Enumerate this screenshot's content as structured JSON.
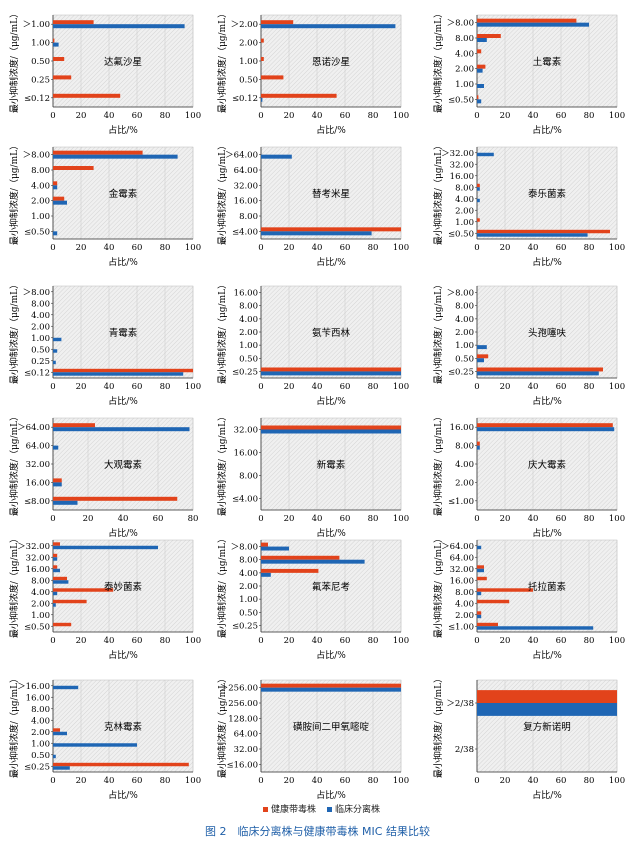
{
  "colors": {
    "healthy": "#e2431b",
    "clinical": "#1f66b4",
    "caption": "#1f5fa8",
    "plot_bg": "#e8e8e8"
  },
  "legend": {
    "healthy": "健康带毒株",
    "clinical": "临床分离株"
  },
  "caption": "图 2　临床分离株与健康带毒株 MIC 结果比较",
  "ylabel": "最小抑制浓度/（μg/mL）",
  "xlabel": "占比/%",
  "chart_data": [
    {
      "type": "bar",
      "title": "达氟沙星",
      "categories": [
        "≤0.12",
        "0.25",
        "0.50",
        "1.00",
        "＞1.00"
      ],
      "series": [
        {
          "name": "健康带毒株",
          "values": [
            48,
            13,
            8,
            1,
            29
          ]
        },
        {
          "name": "临床分离株",
          "values": [
            0,
            0,
            0,
            4,
            94
          ]
        }
      ],
      "xlim": [
        0,
        100
      ],
      "xticks": [
        0,
        20,
        40,
        60,
        80,
        100
      ]
    },
    {
      "type": "bar",
      "title": "恩诺沙星",
      "categories": [
        "≤0.12",
        "0.50",
        "1.00",
        "2.00",
        "＞2.00"
      ],
      "series": [
        {
          "name": "健康带毒株",
          "values": [
            54,
            16,
            2,
            2,
            23
          ]
        },
        {
          "name": "临床分离株",
          "values": [
            1,
            0,
            0,
            0,
            96
          ]
        }
      ],
      "xlim": [
        0,
        100
      ],
      "xticks": [
        0,
        20,
        40,
        60,
        80,
        100
      ]
    },
    {
      "type": "bar",
      "title": "土霉素",
      "categories": [
        "≤0.50",
        "1.00",
        "2.00",
        "4.00",
        "8.00",
        "＞8.00"
      ],
      "series": [
        {
          "name": "健康带毒株",
          "values": [
            1,
            0,
            6,
            3,
            17,
            71
          ]
        },
        {
          "name": "临床分离株",
          "values": [
            3,
            5,
            4,
            0,
            7,
            80
          ]
        }
      ],
      "xlim": [
        0,
        100
      ],
      "xticks": [
        0,
        20,
        40,
        60,
        80,
        100
      ]
    },
    {
      "type": "bar",
      "title": "金霉素",
      "categories": [
        "≤0.50",
        "1.00",
        "2.00",
        "4.00",
        "8.00",
        "＞8.00"
      ],
      "series": [
        {
          "name": "健康带毒株",
          "values": [
            0,
            0,
            8,
            3,
            29,
            64
          ]
        },
        {
          "name": "临床分离株",
          "values": [
            3,
            0,
            10,
            3,
            0,
            89
          ]
        }
      ],
      "xlim": [
        0,
        100
      ],
      "xticks": [
        0,
        20,
        40,
        60,
        80,
        100
      ]
    },
    {
      "type": "bar",
      "title": "替考米星",
      "categories": [
        "≤4.00",
        "8.00",
        "16.00",
        "32.00",
        "64.00",
        "＞64.00"
      ],
      "series": [
        {
          "name": "健康带毒株",
          "values": [
            100,
            0,
            0,
            0,
            0,
            0
          ]
        },
        {
          "name": "临床分离株",
          "values": [
            79,
            0,
            0,
            0,
            0,
            22
          ]
        }
      ],
      "xlim": [
        0,
        100
      ],
      "xticks": [
        0,
        20,
        40,
        60,
        80,
        100
      ]
    },
    {
      "type": "bar",
      "title": "泰乐菌素",
      "categories": [
        "≤0.50",
        "1.00",
        "2.00",
        "4.00",
        "8.00",
        "16.00",
        "32.00",
        "＞32.00"
      ],
      "series": [
        {
          "name": "健康带毒株",
          "values": [
            95,
            2,
            0,
            0,
            2,
            0,
            0,
            0
          ]
        },
        {
          "name": "临床分离株",
          "values": [
            79,
            0,
            0,
            2,
            2,
            0,
            0,
            12
          ]
        }
      ],
      "xlim": [
        0,
        100
      ],
      "xticks": [
        0,
        20,
        40,
        60,
        80,
        100
      ]
    },
    {
      "type": "bar",
      "title": "青霉素",
      "categories": [
        "≤0.12",
        "0.25",
        "0.50",
        "1.00",
        "2.00",
        "4.00",
        "8.00",
        "＞8.00"
      ],
      "series": [
        {
          "name": "健康带毒株",
          "values": [
            100,
            0,
            0,
            0,
            0,
            0,
            0,
            0
          ]
        },
        {
          "name": "临床分离株",
          "values": [
            93,
            2,
            3,
            6,
            0,
            0,
            0,
            0
          ]
        }
      ],
      "xlim": [
        0,
        100
      ],
      "xticks": [
        0,
        20,
        40,
        60,
        80,
        100
      ]
    },
    {
      "type": "bar",
      "title": "氨苄西林",
      "categories": [
        "≤0.25",
        "0.50",
        "1.00",
        "2.00",
        "4.00",
        "8.00",
        "16.00"
      ],
      "series": [
        {
          "name": "健康带毒株",
          "values": [
            100,
            0,
            0,
            0,
            0,
            0,
            0
          ]
        },
        {
          "name": "临床分离株",
          "values": [
            100,
            0,
            0,
            0,
            0,
            0,
            0
          ]
        }
      ],
      "xlim": [
        0,
        100
      ],
      "xticks": [
        0,
        20,
        40,
        60,
        80,
        100
      ]
    },
    {
      "type": "bar",
      "title": "头孢噻呋",
      "categories": [
        "≤0.25",
        "0.50",
        "1.00",
        "2.00",
        "4.00",
        "8.00",
        "＞8.00"
      ],
      "series": [
        {
          "name": "健康带毒株",
          "values": [
            90,
            8,
            0,
            0,
            0,
            0,
            0
          ]
        },
        {
          "name": "临床分离株",
          "values": [
            87,
            5,
            7,
            0,
            0,
            0,
            0
          ]
        }
      ],
      "xlim": [
        0,
        100
      ],
      "xticks": [
        0,
        20,
        40,
        60,
        80,
        100
      ]
    },
    {
      "type": "bar",
      "title": "大观霉素",
      "categories": [
        "≤8.00",
        "16.00",
        "32.00",
        "64.00",
        "＞64.00"
      ],
      "series": [
        {
          "name": "健康带毒株",
          "values": [
            71,
            5,
            0,
            0,
            24
          ]
        },
        {
          "name": "临床分离株",
          "values": [
            14,
            5,
            0,
            3,
            78
          ]
        }
      ],
      "xlim": [
        0,
        80
      ],
      "xticks": [
        0,
        20,
        40,
        60,
        80
      ]
    },
    {
      "type": "bar",
      "title": "新霉素",
      "categories": [
        "≤4.00",
        "8.00",
        "16.00",
        "32.00"
      ],
      "series": [
        {
          "name": "健康带毒株",
          "values": [
            0,
            0,
            0,
            100
          ]
        },
        {
          "name": "临床分离株",
          "values": [
            0,
            0,
            0,
            100
          ]
        }
      ],
      "xlim": [
        0,
        100
      ],
      "xticks": [
        0,
        20,
        40,
        60,
        80,
        100
      ]
    },
    {
      "type": "bar",
      "title": "庆大霉素",
      "categories": [
        "≤1.00",
        "2.00",
        "4.00",
        "8.00",
        "16.00"
      ],
      "series": [
        {
          "name": "健康带毒株",
          "values": [
            0,
            0,
            0,
            2,
            97
          ]
        },
        {
          "name": "临床分离株",
          "values": [
            0,
            0,
            0,
            2,
            98
          ]
        }
      ],
      "xlim": [
        0,
        100
      ],
      "xticks": [
        0,
        20,
        40,
        60,
        80,
        100
      ]
    },
    {
      "type": "bar",
      "title": "泰妙菌素",
      "categories": [
        "≤0.50",
        "1.00",
        "2.00",
        "4.00",
        "8.00",
        "16.00",
        "32.00",
        "＞32.00"
      ],
      "series": [
        {
          "name": "健康带毒株",
          "values": [
            13,
            0,
            24,
            43,
            10,
            3,
            3,
            5
          ]
        },
        {
          "name": "临床分离株",
          "values": [
            0,
            0,
            2,
            3,
            11,
            5,
            3,
            75
          ]
        }
      ],
      "xlim": [
        0,
        100
      ],
      "xticks": [
        0,
        20,
        40,
        60,
        80,
        100
      ]
    },
    {
      "type": "bar",
      "title": "氟苯尼考",
      "categories": [
        "≤0.25",
        "0.50",
        "1.00",
        "2.00",
        "4.00",
        "8.00",
        "＞8.00"
      ],
      "series": [
        {
          "name": "健康带毒株",
          "values": [
            0,
            0,
            0,
            0,
            41,
            56,
            5
          ]
        },
        {
          "name": "临床分离株",
          "values": [
            0,
            0,
            0,
            0,
            7,
            74,
            20
          ]
        }
      ],
      "xlim": [
        0,
        100
      ],
      "xticks": [
        0,
        20,
        40,
        60,
        80,
        100
      ]
    },
    {
      "type": "bar",
      "title": "托拉菌素",
      "categories": [
        "≤1.00",
        "2.00",
        "4.00",
        "8.00",
        "16.00",
        "32.00",
        "64.00",
        "＞64.00"
      ],
      "series": [
        {
          "name": "健康带毒株",
          "values": [
            15,
            3,
            23,
            40,
            7,
            5,
            0,
            0
          ]
        },
        {
          "name": "临床分离株",
          "values": [
            83,
            3,
            0,
            3,
            0,
            5,
            0,
            3
          ]
        }
      ],
      "xlim": [
        0,
        100
      ],
      "xticks": [
        0,
        20,
        40,
        60,
        80,
        100
      ]
    },
    {
      "type": "bar",
      "title": "克林霉素",
      "categories": [
        "≤0.25",
        "0.50",
        "1.00",
        "2.00",
        "4.00",
        "8.00",
        "16.00",
        "＞16.00"
      ],
      "series": [
        {
          "name": "健康带毒株",
          "values": [
            97,
            0,
            0,
            5,
            0,
            0,
            0,
            0
          ]
        },
        {
          "name": "临床分离株",
          "values": [
            12,
            2,
            60,
            10,
            0,
            0,
            0,
            18
          ]
        }
      ],
      "xlim": [
        0,
        100
      ],
      "xticks": [
        0,
        20,
        40,
        60,
        80,
        100
      ]
    },
    {
      "type": "bar",
      "title": "磺胺间二甲氧嘧啶",
      "categories": [
        "≤16.00",
        "32.00",
        "64.00",
        "128.00",
        "256.00",
        "＞256.00"
      ],
      "series": [
        {
          "name": "健康带毒株",
          "values": [
            0,
            0,
            0,
            0,
            0,
            100
          ]
        },
        {
          "name": "临床分离株",
          "values": [
            0,
            0,
            0,
            0,
            0,
            100
          ]
        }
      ],
      "xlim": [
        0,
        100
      ],
      "xticks": [
        0,
        20,
        40,
        60,
        80,
        100
      ]
    },
    {
      "type": "bar",
      "title": "复方新诺明",
      "categories": [
        "2/38",
        "＞2/38"
      ],
      "series": [
        {
          "name": "健康带毒株",
          "values": [
            0,
            100
          ]
        },
        {
          "name": "临床分离株",
          "values": [
            0,
            100
          ]
        }
      ],
      "xlim": [
        0,
        100
      ],
      "xticks": [
        0,
        20,
        40,
        60,
        80,
        100
      ],
      "wide_bars": true
    }
  ]
}
